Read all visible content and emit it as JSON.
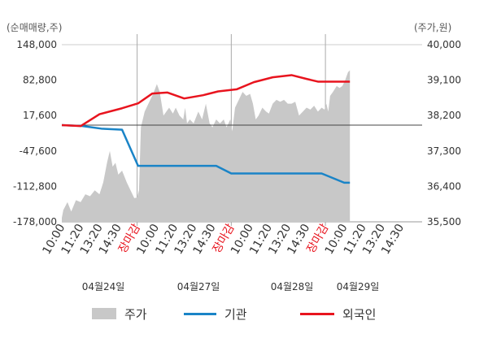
{
  "chart_data": {
    "type": "line",
    "left_axis_title": "(순매매량,주)",
    "right_axis_title": "(주가,원)",
    "left_ticks": [
      "148,000",
      "82,800",
      "17,600",
      "-47,600",
      "-112,800",
      "-178,000"
    ],
    "right_ticks": [
      "40,000",
      "39,100",
      "38,200",
      "37,300",
      "36,400",
      "35,500"
    ],
    "left_ylim": [
      -178000,
      148000
    ],
    "right_ylim": [
      35500,
      40000
    ],
    "zero_line": 0,
    "x_ticks": [
      {
        "label": "10:00",
        "closing": false
      },
      {
        "label": "11:20",
        "closing": false
      },
      {
        "label": "13:20",
        "closing": false
      },
      {
        "label": "14:30",
        "closing": false
      },
      {
        "label": "장마감",
        "closing": true
      },
      {
        "label": "10:00",
        "closing": false
      },
      {
        "label": "11:20",
        "closing": false
      },
      {
        "label": "13:20",
        "closing": false
      },
      {
        "label": "14:30",
        "closing": false
      },
      {
        "label": "장마감",
        "closing": true
      },
      {
        "label": "10:00",
        "closing": false
      },
      {
        "label": "11:20",
        "closing": false
      },
      {
        "label": "13:20",
        "closing": false
      },
      {
        "label": "14:30",
        "closing": false
      },
      {
        "label": "장마감",
        "closing": true
      },
      {
        "label": "10:00",
        "closing": false
      },
      {
        "label": "11:20",
        "closing": false
      },
      {
        "label": "13:20",
        "closing": false
      },
      {
        "label": "14:30",
        "closing": false
      }
    ],
    "dates": [
      "04월24일",
      "04월27일",
      "04월28일",
      "04월29일"
    ],
    "legend": [
      "주가",
      "기관",
      "외국인"
    ],
    "colors": {
      "price": "#c8c8c8",
      "institution": "#1a84c7",
      "foreign": "#e8141e",
      "grid": "#dddddd",
      "axis": "#555555",
      "closing_label": "#e8141e"
    },
    "institution": [
      [
        0,
        0
      ],
      [
        1.05,
        -1500
      ],
      [
        2.1,
        -6500
      ],
      [
        3.2,
        -8500
      ],
      [
        4.05,
        -75000
      ],
      [
        4.65,
        -75000
      ],
      [
        5.2,
        -75000
      ],
      [
        6.2,
        -75000
      ],
      [
        7.2,
        -75000
      ],
      [
        8.2,
        -75000
      ],
      [
        9.0,
        -89000
      ],
      [
        10.5,
        -89000
      ],
      [
        11.5,
        -89000
      ],
      [
        12.5,
        -89000
      ],
      [
        13.8,
        -89000
      ],
      [
        15.0,
        -106000
      ],
      [
        15.3,
        -106000
      ]
    ],
    "foreign": [
      [
        0,
        0
      ],
      [
        1.0,
        -1800
      ],
      [
        2.0,
        20000
      ],
      [
        3.2,
        31000
      ],
      [
        4.05,
        40000
      ],
      [
        4.8,
        58000
      ],
      [
        5.6,
        60000
      ],
      [
        6.5,
        49000
      ],
      [
        7.5,
        55000
      ],
      [
        8.3,
        62000
      ],
      [
        9.3,
        66000
      ],
      [
        10.2,
        79000
      ],
      [
        11.2,
        88000
      ],
      [
        12.2,
        92000
      ],
      [
        13.0,
        85000
      ],
      [
        13.6,
        80000
      ],
      [
        14.1,
        80000
      ],
      [
        15.3,
        80000
      ]
    ],
    "price": [
      [
        0,
        35600
      ],
      [
        0.08,
        35800
      ],
      [
        0.3,
        36000
      ],
      [
        0.5,
        35760
      ],
      [
        0.75,
        36050
      ],
      [
        1.0,
        36000
      ],
      [
        1.25,
        36200
      ],
      [
        1.5,
        36150
      ],
      [
        1.75,
        36300
      ],
      [
        2.0,
        36200
      ],
      [
        2.2,
        36500
      ],
      [
        2.4,
        37000
      ],
      [
        2.55,
        37300
      ],
      [
        2.7,
        36900
      ],
      [
        2.85,
        37000
      ],
      [
        3.0,
        36700
      ],
      [
        3.2,
        36800
      ],
      [
        3.45,
        36500
      ],
      [
        3.65,
        36300
      ],
      [
        3.85,
        36100
      ],
      [
        4.0,
        36120
      ],
      [
        4.1,
        36300
      ],
      [
        4.2,
        37900
      ],
      [
        4.4,
        38300
      ],
      [
        4.6,
        38500
      ],
      [
        4.85,
        38750
      ],
      [
        5.05,
        39000
      ],
      [
        5.2,
        38800
      ],
      [
        5.4,
        38200
      ],
      [
        5.55,
        38300
      ],
      [
        5.7,
        38400
      ],
      [
        5.9,
        38250
      ],
      [
        6.05,
        38400
      ],
      [
        6.25,
        38200
      ],
      [
        6.45,
        38100
      ],
      [
        6.55,
        38400
      ],
      [
        6.65,
        38000
      ],
      [
        6.8,
        38100
      ],
      [
        7.0,
        38000
      ],
      [
        7.25,
        38300
      ],
      [
        7.45,
        38100
      ],
      [
        7.65,
        38500
      ],
      [
        7.85,
        38000
      ],
      [
        8.0,
        37900
      ],
      [
        8.2,
        38100
      ],
      [
        8.4,
        38000
      ],
      [
        8.6,
        38100
      ],
      [
        8.75,
        37900
      ],
      [
        8.95,
        38100
      ],
      [
        9.05,
        37800
      ],
      [
        9.2,
        38400
      ],
      [
        9.4,
        38600
      ],
      [
        9.6,
        38800
      ],
      [
        9.8,
        38700
      ],
      [
        10.0,
        38750
      ],
      [
        10.15,
        38500
      ],
      [
        10.3,
        38100
      ],
      [
        10.45,
        38200
      ],
      [
        10.65,
        38400
      ],
      [
        10.85,
        38300
      ],
      [
        11.0,
        38250
      ],
      [
        11.2,
        38500
      ],
      [
        11.4,
        38600
      ],
      [
        11.6,
        38550
      ],
      [
        11.8,
        38600
      ],
      [
        12.0,
        38500
      ],
      [
        12.2,
        38500
      ],
      [
        12.4,
        38550
      ],
      [
        12.6,
        38200
      ],
      [
        12.8,
        38300
      ],
      [
        13.0,
        38400
      ],
      [
        13.2,
        38350
      ],
      [
        13.4,
        38450
      ],
      [
        13.6,
        38300
      ],
      [
        13.8,
        38400
      ],
      [
        13.95,
        38350
      ],
      [
        14.05,
        38500
      ],
      [
        14.15,
        38300
      ],
      [
        14.25,
        38700
      ],
      [
        14.4,
        38800
      ],
      [
        14.6,
        38950
      ],
      [
        14.75,
        38900
      ],
      [
        14.9,
        38950
      ],
      [
        15.05,
        39100
      ],
      [
        15.2,
        39300
      ],
      [
        15.3,
        39350
      ]
    ]
  }
}
